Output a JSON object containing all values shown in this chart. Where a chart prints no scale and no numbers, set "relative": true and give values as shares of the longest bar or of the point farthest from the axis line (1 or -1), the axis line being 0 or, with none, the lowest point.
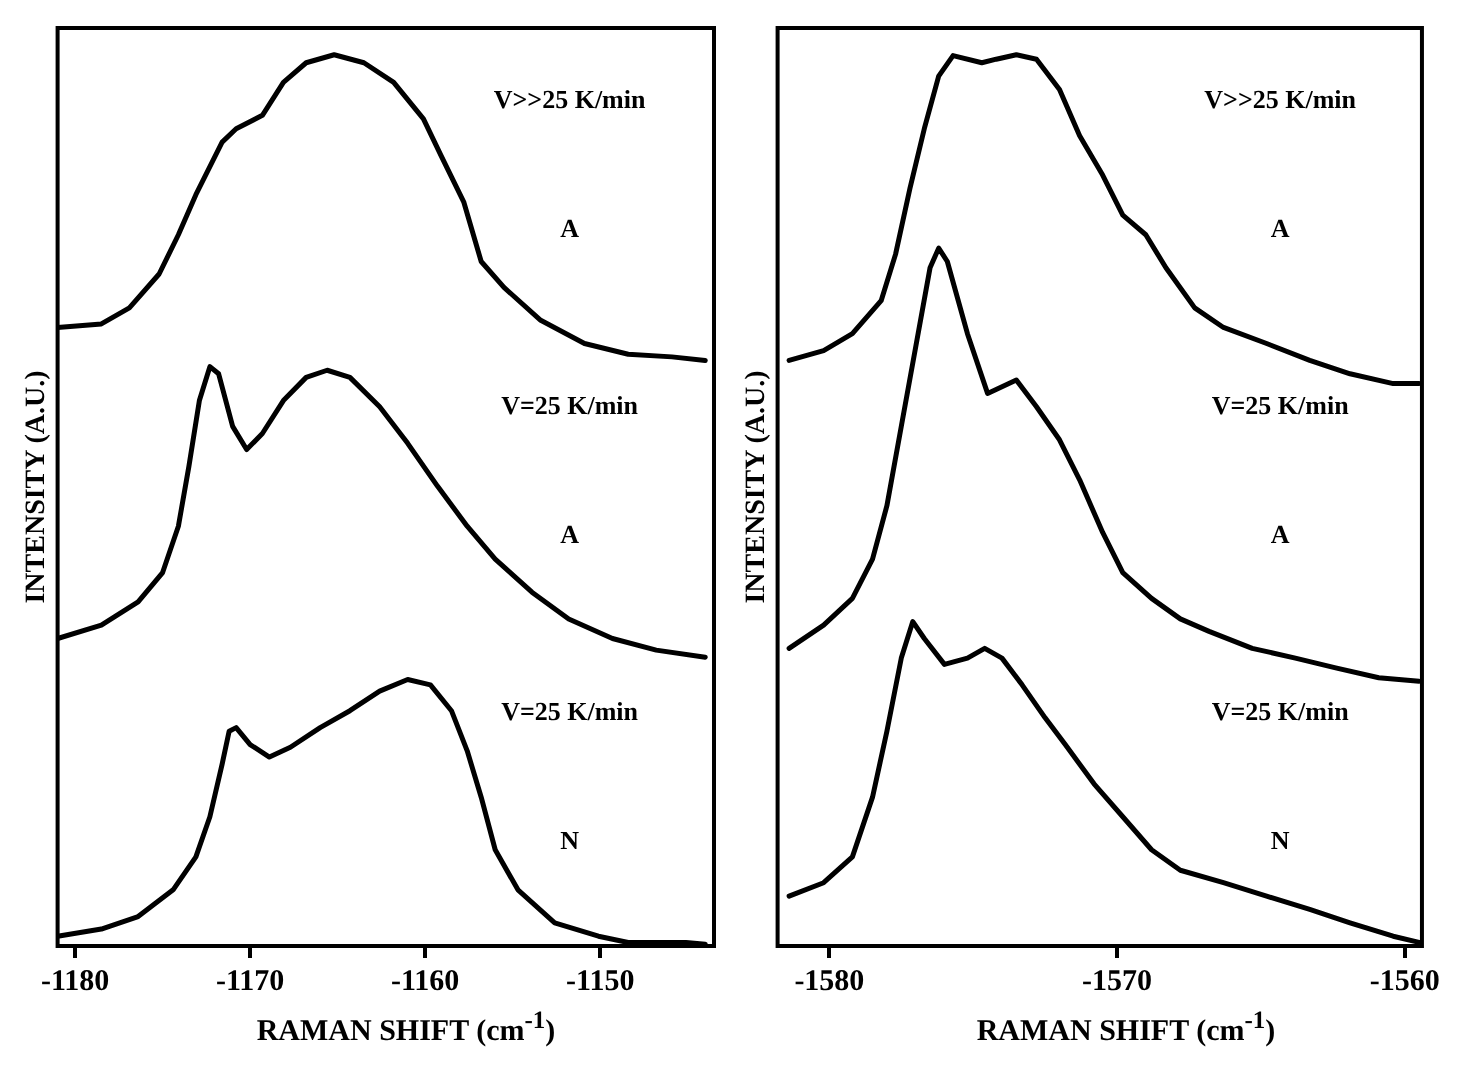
{
  "chart_data": [
    {
      "type": "line",
      "xlabel": "RAMAN SHIFT (cm$^{-1}$)",
      "ylabel": "INTENSITY (A.U.)",
      "relative": true,
      "xlim": [
        -1181,
        -1143.5
      ],
      "xticks": [
        -1180,
        -1170,
        -1160,
        -1150
      ],
      "tick_labels": "x",
      "grid": false,
      "legend": false,
      "marker": "none",
      "line_style": "solid",
      "series": [
        {
          "color": "#000000",
          "x": [
            -1181.0,
            -1178.5,
            -1176.9,
            -1175.2,
            -1174.1,
            -1173.1,
            -1171.6,
            -1170.8,
            -1169.3,
            -1168.1,
            -1166.8,
            -1165.2,
            -1163.5,
            -1161.8,
            -1160.1,
            -1159.1,
            -1157.8,
            -1156.8,
            -1155.5,
            -1153.4,
            -1150.9,
            -1148.4,
            -1145.9,
            -1144.0
          ],
          "values": [
            0.694,
            0.698,
            0.716,
            0.754,
            0.798,
            0.843,
            0.902,
            0.917,
            0.932,
            0.969,
            0.991,
            1.0,
            0.991,
            0.969,
            0.928,
            0.887,
            0.835,
            0.768,
            0.739,
            0.702,
            0.676,
            0.664,
            0.661,
            0.657
          ]
        },
        {
          "color": "#000000",
          "x": [
            -1181.0,
            -1178.5,
            -1176.4,
            -1175.0,
            -1174.1,
            -1173.5,
            -1172.9,
            -1172.3,
            -1171.8,
            -1171.0,
            -1170.2,
            -1169.3,
            -1168.1,
            -1166.8,
            -1165.6,
            -1164.3,
            -1162.6,
            -1161.0,
            -1159.3,
            -1157.6,
            -1156.0,
            -1153.9,
            -1151.8,
            -1149.3,
            -1146.8,
            -1144.0
          ],
          "values": [
            0.345,
            0.36,
            0.386,
            0.419,
            0.471,
            0.538,
            0.612,
            0.65,
            0.642,
            0.583,
            0.557,
            0.575,
            0.612,
            0.638,
            0.646,
            0.638,
            0.605,
            0.564,
            0.516,
            0.471,
            0.434,
            0.397,
            0.367,
            0.345,
            0.332,
            0.324
          ]
        },
        {
          "color": "#000000",
          "x": [
            -1181.0,
            -1178.5,
            -1176.4,
            -1174.4,
            -1173.1,
            -1172.3,
            -1171.6,
            -1171.2,
            -1170.8,
            -1170.0,
            -1168.9,
            -1167.7,
            -1166.0,
            -1164.3,
            -1162.6,
            -1161.0,
            -1159.7,
            -1158.5,
            -1157.6,
            -1156.8,
            -1156.0,
            -1154.7,
            -1152.6,
            -1150.1,
            -1148.4,
            -1145.1,
            -1144.0
          ],
          "values": [
            0.011,
            0.019,
            0.033,
            0.063,
            0.1,
            0.145,
            0.204,
            0.241,
            0.245,
            0.226,
            0.212,
            0.223,
            0.245,
            0.264,
            0.286,
            0.299,
            0.293,
            0.264,
            0.219,
            0.167,
            0.108,
            0.063,
            0.026,
            0.011,
            0.004,
            0.004,
            0.002
          ]
        }
      ],
      "annotations": [
        "V>>25 K/min",
        "A",
        "V=25 K/min",
        "A",
        "V=25 K/min",
        "N"
      ]
    },
    {
      "type": "line",
      "xlabel": "RAMAN SHIFT (cm$^{-1}$)",
      "ylabel": "INTENSITY (A.U.)",
      "relative": true,
      "xlim": [
        -1581.8,
        -1559.4
      ],
      "xticks": [
        -1580,
        -1570,
        -1560
      ],
      "tick_labels": "x",
      "grid": false,
      "legend": false,
      "marker": "none",
      "line_style": "solid",
      "series": [
        {
          "color": "#000000",
          "x": [
            -1581.4,
            -1580.2,
            -1579.2,
            -1578.2,
            -1577.7,
            -1577.2,
            -1576.7,
            -1576.2,
            -1575.7,
            -1574.7,
            -1574.2,
            -1573.5,
            -1572.8,
            -1572.0,
            -1571.3,
            -1570.5,
            -1569.8,
            -1569.0,
            -1568.3,
            -1567.3,
            -1566.3,
            -1564.8,
            -1563.3,
            -1561.9,
            -1560.4,
            -1559.5
          ],
          "values": [
            0.657,
            0.668,
            0.687,
            0.724,
            0.776,
            0.85,
            0.917,
            0.976,
            0.999,
            0.991,
            0.995,
            1.0,
            0.995,
            0.961,
            0.909,
            0.865,
            0.82,
            0.798,
            0.761,
            0.716,
            0.694,
            0.676,
            0.657,
            0.642,
            0.631,
            0.631
          ]
        },
        {
          "color": "#000000",
          "x": [
            -1581.4,
            -1580.2,
            -1579.2,
            -1578.5,
            -1578.0,
            -1577.5,
            -1577.0,
            -1576.5,
            -1576.2,
            -1575.9,
            -1575.2,
            -1574.5,
            -1573.5,
            -1572.8,
            -1572.0,
            -1571.3,
            -1570.5,
            -1569.8,
            -1568.8,
            -1567.8,
            -1566.8,
            -1565.3,
            -1563.8,
            -1562.4,
            -1560.9,
            -1559.5
          ],
          "values": [
            0.334,
            0.36,
            0.39,
            0.434,
            0.494,
            0.583,
            0.672,
            0.761,
            0.783,
            0.768,
            0.687,
            0.62,
            0.635,
            0.605,
            0.568,
            0.523,
            0.464,
            0.419,
            0.39,
            0.367,
            0.353,
            0.334,
            0.323,
            0.312,
            0.301,
            0.297
          ]
        },
        {
          "color": "#000000",
          "x": [
            -1581.4,
            -1580.2,
            -1579.2,
            -1578.5,
            -1578.0,
            -1577.5,
            -1577.1,
            -1576.7,
            -1576.0,
            -1575.2,
            -1574.6,
            -1574.0,
            -1573.3,
            -1572.5,
            -1571.8,
            -1570.8,
            -1569.8,
            -1568.8,
            -1567.8,
            -1566.3,
            -1564.8,
            -1563.3,
            -1561.9,
            -1560.4,
            -1559.5
          ],
          "values": [
            0.056,
            0.071,
            0.1,
            0.167,
            0.241,
            0.323,
            0.364,
            0.345,
            0.316,
            0.323,
            0.334,
            0.323,
            0.293,
            0.256,
            0.226,
            0.182,
            0.145,
            0.108,
            0.085,
            0.071,
            0.056,
            0.041,
            0.026,
            0.011,
            0.004
          ]
        }
      ],
      "annotations": [
        "V>>25 K/min",
        "A",
        "V=25 K/min",
        "A",
        "V=25 K/min",
        "N"
      ]
    }
  ]
}
